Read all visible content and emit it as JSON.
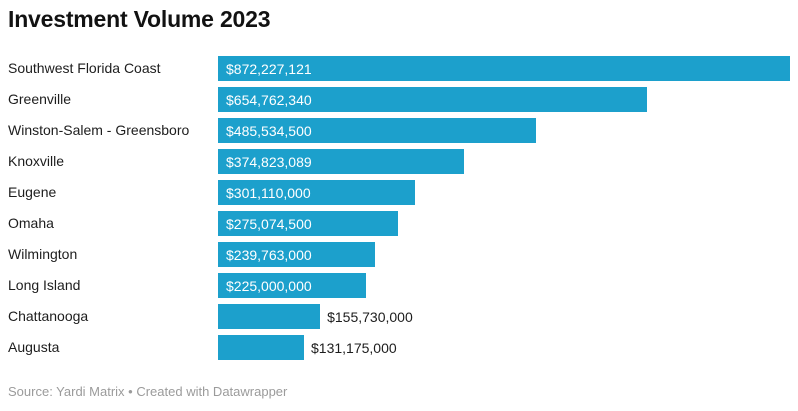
{
  "title": "Investment Volume 2023",
  "footer": "Source: Yardi Matrix • Created with Datawrapper",
  "colors": {
    "bar": "#1CA0CC",
    "value_inside": "#ffffff",
    "value_outside": "#1d1d1d",
    "category_text": "#1d1d1d",
    "title_text": "#121212",
    "footer_text": "#9b9b9b"
  },
  "chart_data": {
    "type": "bar",
    "orientation": "horizontal",
    "title": "Investment Volume 2023",
    "xlabel": "",
    "ylabel": "",
    "xlim": [
      0,
      872227121
    ],
    "grid": false,
    "legend": false,
    "bar_color": "#1CA0CC",
    "categories": [
      "Southwest Florida Coast",
      "Greenville",
      "Winston-Salem - Greensboro",
      "Knoxville",
      "Eugene",
      "Omaha",
      "Wilmington",
      "Long Island",
      "Chattanooga",
      "Augusta"
    ],
    "values": [
      872227121,
      654762340,
      485534500,
      374823089,
      301110000,
      275074500,
      239763000,
      225000000,
      155730000,
      131175000
    ],
    "value_labels": [
      "$872,227,121",
      "$654,762,340",
      "$485,534,500",
      "$374,823,089",
      "$301,110,000",
      "$275,074,500",
      "$239,763,000",
      "$225,000,000",
      "$155,730,000",
      "$131,175,000"
    ]
  }
}
